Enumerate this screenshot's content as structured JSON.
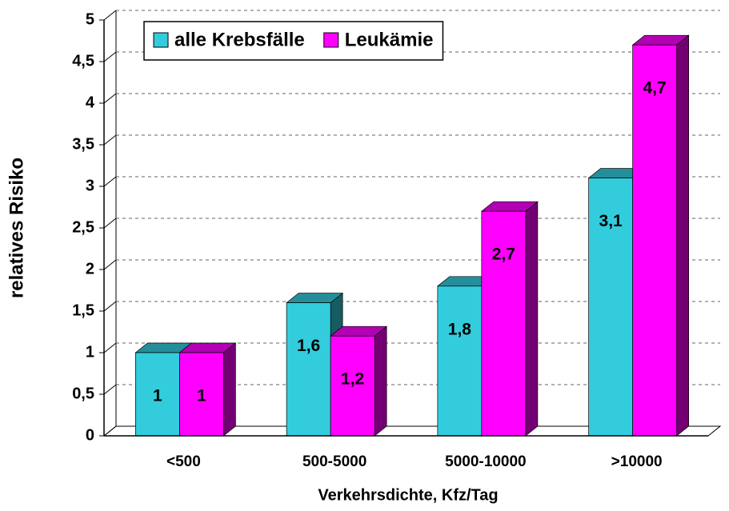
{
  "chart_data": {
    "type": "bar3d",
    "ylabel": "relatives Risiko",
    "xlabel": "Verkehrsdichte, Kfz/Tag",
    "categories": [
      "<500",
      "500-5000",
      "5000-10000",
      ">10000"
    ],
    "series": [
      {
        "name": "alle Krebsfälle",
        "color": "#33ccdd",
        "values": [
          1,
          1.6,
          1.8,
          3.1
        ],
        "value_labels": [
          "1",
          "1,6",
          "1,8",
          "3,1"
        ]
      },
      {
        "name": "Leukämie",
        "color": "#ff00ff",
        "values": [
          1,
          1.2,
          2.7,
          4.7
        ],
        "value_labels": [
          "1",
          "1,2",
          "2,7",
          "4,7"
        ]
      }
    ],
    "ylim": [
      0,
      5
    ],
    "yticks": [
      0,
      {
        "value": 0.5,
        "label": "0,5"
      },
      1,
      {
        "value": 1.5,
        "label": "1,5"
      },
      2,
      {
        "value": 2.5,
        "label": "2,5"
      },
      3,
      {
        "value": 3.5,
        "label": "3,5"
      },
      4,
      {
        "value": 4.5,
        "label": "4,5"
      },
      5
    ],
    "grid": true,
    "legend": "top-left"
  }
}
